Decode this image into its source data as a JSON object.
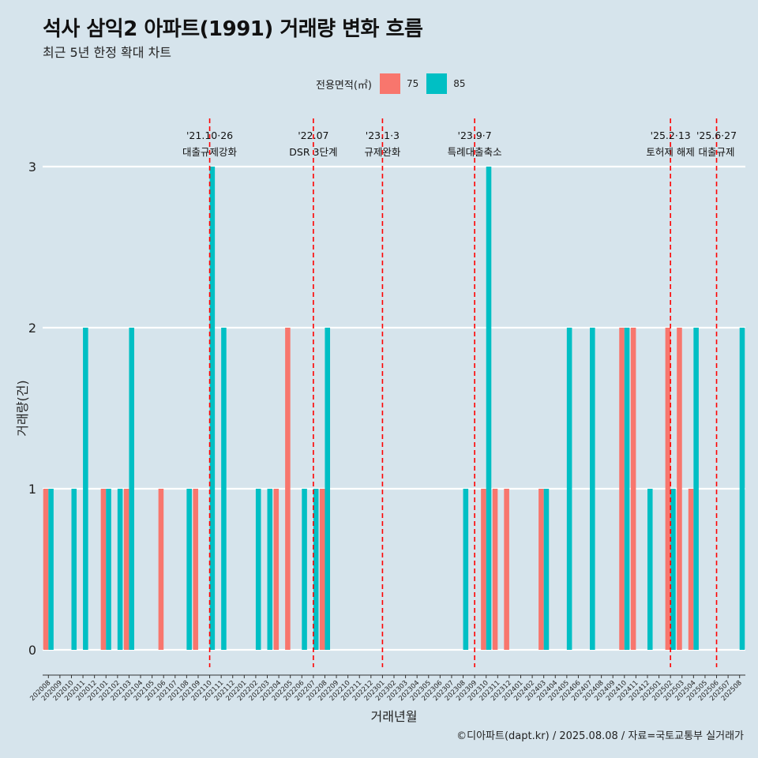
{
  "header": {
    "title": "석사 삼익2 아파트(1991) 거래량 변화 흐름",
    "subtitle": "최근 5년 한정 확대 차트"
  },
  "legend": {
    "title": "전용면적(㎡)",
    "items": [
      {
        "label": "75",
        "color": "#F8766D"
      },
      {
        "label": "85",
        "color": "#00BFC4"
      }
    ]
  },
  "caption": "©디아파트(dapt.kr) / 2025.08.08 / 자료=국토교통부 실거래가",
  "chart_data": {
    "type": "bar",
    "title": "석사 삼익2 아파트(1991) 거래량 변화 흐름",
    "xlabel": "거래년월",
    "ylabel": "거래량(건)",
    "ylim": [
      0,
      3
    ],
    "yticks": [
      0,
      1,
      2,
      3
    ],
    "categories": [
      "202008",
      "202009",
      "202010",
      "202011",
      "202012",
      "202101",
      "202102",
      "202103",
      "202104",
      "202105",
      "202106",
      "202107",
      "202108",
      "202109",
      "202110",
      "202111",
      "202112",
      "202201",
      "202202",
      "202203",
      "202204",
      "202205",
      "202206",
      "202207",
      "202208",
      "202209",
      "202210",
      "202211",
      "202212",
      "202301",
      "202302",
      "202303",
      "202304",
      "202305",
      "202306",
      "202307",
      "202308",
      "202309",
      "202310",
      "202311",
      "202312",
      "202401",
      "202402",
      "202403",
      "202404",
      "202405",
      "202406",
      "202407",
      "202408",
      "202409",
      "202410",
      "202411",
      "202412",
      "202501",
      "202502",
      "202503",
      "202504",
      "202505",
      "202506",
      "202507",
      "202508"
    ],
    "series": [
      {
        "name": "75",
        "color": "#F8766D",
        "values": [
          1,
          0,
          0,
          0,
          0,
          1,
          0,
          1,
          0,
          0,
          1,
          0,
          0,
          1,
          0,
          0,
          0,
          0,
          0,
          0,
          1,
          2,
          0,
          0,
          1,
          0,
          0,
          0,
          0,
          0,
          0,
          0,
          0,
          0,
          0,
          0,
          0,
          0,
          1,
          1,
          1,
          0,
          0,
          1,
          0,
          0,
          0,
          0,
          0,
          0,
          2,
          2,
          0,
          0,
          2,
          2,
          1,
          0,
          0,
          0,
          0
        ]
      },
      {
        "name": "85",
        "color": "#00BFC4",
        "values": [
          1,
          0,
          1,
          2,
          0,
          1,
          1,
          2,
          0,
          0,
          0,
          0,
          1,
          0,
          3,
          2,
          0,
          0,
          1,
          1,
          0,
          0,
          1,
          1,
          2,
          0,
          0,
          0,
          0,
          0,
          0,
          0,
          0,
          0,
          0,
          0,
          1,
          0,
          3,
          0,
          0,
          0,
          0,
          1,
          0,
          2,
          0,
          2,
          0,
          0,
          2,
          0,
          1,
          0,
          1,
          0,
          2,
          0,
          0,
          0,
          2
        ]
      }
    ],
    "events": [
      {
        "month": "202110",
        "date": "'21.10·26",
        "label": "대출규제강화"
      },
      {
        "month": "202207",
        "date": "'22.07",
        "label": "DSR 3단계"
      },
      {
        "month": "202301",
        "date": "'23.1·3",
        "label": "규제완화"
      },
      {
        "month": "202309",
        "date": "'23.9·7",
        "label": "특례대출축소"
      },
      {
        "month": "202502",
        "date": "'25.2·13",
        "label": "토허제 해제"
      },
      {
        "month": "202506",
        "date": "'25.6·27",
        "label": "대출규제"
      }
    ]
  }
}
